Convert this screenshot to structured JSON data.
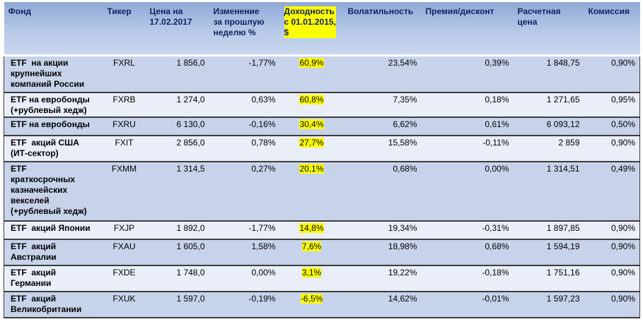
{
  "headers": {
    "fund": "Фонд",
    "ticker": "Тикер",
    "price": "Цена на\n17.02.2017",
    "change": "Изменение\nза прошлую\nнеделю %",
    "yield": "Доходность\nс 01.01.2015,\n$",
    "volatility": "Волатильность",
    "premium": "Премия/дисконт",
    "calc_price": "Расчетная\nцена",
    "fee": "Комиссия"
  },
  "highlight_color": "#ffff00",
  "rows": [
    {
      "fund": "ETF  на акции\nкрупнейших\nкомпаний России",
      "ticker": "FXRL",
      "price": "1 856,0",
      "change": "-1,77%",
      "yield": "60,9%",
      "volatility": "23,54%",
      "premium": "0,39%",
      "calc_price": "1 848,75",
      "fee": "0,90%"
    },
    {
      "fund": "ETF на евробонды\n(+рублевый хедж)",
      "ticker": "FXRB",
      "price": "1 274,0",
      "change": "0,63%",
      "yield": "60,8%",
      "volatility": "7,35%",
      "premium": "0,18%",
      "calc_price": "1 271,65",
      "fee": "0,95%"
    },
    {
      "fund": "ETF на евробонды",
      "ticker": "FXRU",
      "price": "6 130,0",
      "change": "-0,16%",
      "yield": "30,4%",
      "volatility": "6,62%",
      "premium": "0,61%",
      "calc_price": "6 093,12",
      "fee": "0,50%"
    },
    {
      "fund": "ETF  акций США\n(ИТ-сектор)",
      "ticker": "FXIT",
      "price": "2 856,0",
      "change": "0,78%",
      "yield": "27,7%",
      "volatility": "15,58%",
      "premium": "-0,11%",
      "calc_price": "2 859",
      "fee": "0,90%"
    },
    {
      "fund": "ETF\nкраткосрочных\nказначейских\nвекселей\n(+рублевый хедж)",
      "ticker": "FXMM",
      "price": "1 314,5",
      "change": "0,27%",
      "yield": "20,1%",
      "volatility": "0,68%",
      "premium": "0,00%",
      "calc_price": "1 314,51",
      "fee": "0,49%"
    },
    {
      "fund": "ETF  акций Японии",
      "ticker": "FXJP",
      "price": "1 892,0",
      "change": "-1,77%",
      "yield": "14,8%",
      "volatility": "19,34%",
      "premium": "-0,31%",
      "calc_price": "1 897,85",
      "fee": "0,90%"
    },
    {
      "fund": "ETF  акций\nАвстралии",
      "ticker": "FXAU",
      "price": "1 605,0",
      "change": "1,58%",
      "yield": "7,6%",
      "volatility": "18,98%",
      "premium": "0,68%",
      "calc_price": "1 594,19",
      "fee": "0,90%"
    },
    {
      "fund": "ETF  акций\nГермании",
      "ticker": "FXDE",
      "price": "1 748,0",
      "change": "0,00%",
      "yield": "3,1%",
      "volatility": "19,22%",
      "premium": "-0,18%",
      "calc_price": "1 751,16",
      "fee": "0,90%"
    },
    {
      "fund": "ETF  акций\nВеликобритании",
      "ticker": "FXUK",
      "price": "1 597,0",
      "change": "-0,19%",
      "yield": "-6,5%",
      "volatility": "14,62%",
      "premium": "-0,01%",
      "calc_price": "1 597,23",
      "fee": "0,90%"
    }
  ]
}
